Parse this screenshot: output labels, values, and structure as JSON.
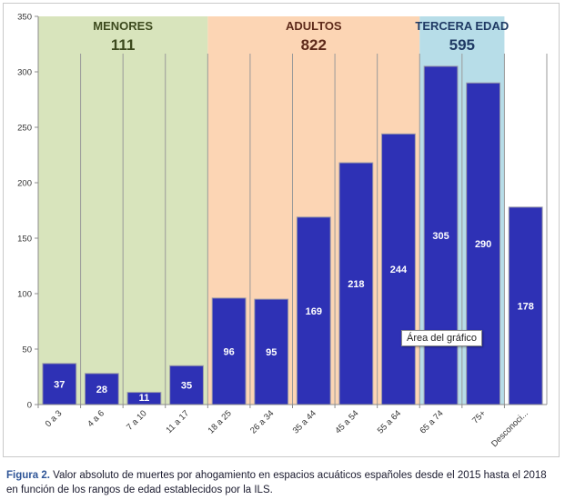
{
  "chart_data": {
    "type": "bar",
    "categories": [
      "0 a 3",
      "4 a 6",
      "7 a 10",
      "11 a 17",
      "18 a 25",
      "26 a 34",
      "35 a 44",
      "45 a 54",
      "55 a 64",
      "65 a 74",
      "75+",
      "Desconoci..."
    ],
    "values": [
      37,
      28,
      11,
      35,
      96,
      95,
      169,
      218,
      244,
      305,
      290,
      178
    ],
    "data_labels": [
      "37",
      "28",
      "11",
      "35",
      "96",
      "95",
      "169",
      "218",
      "244",
      "305",
      "290",
      "178"
    ],
    "ylim": [
      0,
      350
    ],
    "yticks": [
      0,
      50,
      100,
      150,
      200,
      250,
      300,
      350
    ],
    "ytick_labels": [
      "0",
      "50",
      "100",
      "150",
      "200",
      "250",
      "300",
      "350"
    ],
    "grid": false,
    "groups": [
      {
        "name": "MENORES",
        "total": "111",
        "start": 0,
        "end": 3,
        "color": "#d8e4bc",
        "text_color": "#3d4a1e"
      },
      {
        "name": "ADULTOS",
        "total": "822",
        "start": 4,
        "end": 8,
        "color": "#fcd5b4",
        "text_color": "#5e2a1a"
      },
      {
        "name": "TERCERA EDAD",
        "total": "595",
        "start": 9,
        "end": 10,
        "color": "#b7dde8",
        "text_color": "#1f3a64"
      }
    ],
    "bar_color": "#2e31b5",
    "bar_border_color": "#9a9aa8"
  },
  "tooltip": {
    "text": "Área del gráfico"
  },
  "caption": {
    "lead": "Figura 2.",
    "text": " Valor absoluto de muertes por ahogamiento en espacios acuáticos españoles desde el 2015 hasta el 2018 en función de los rangos de edad establecidos por la ILS."
  }
}
